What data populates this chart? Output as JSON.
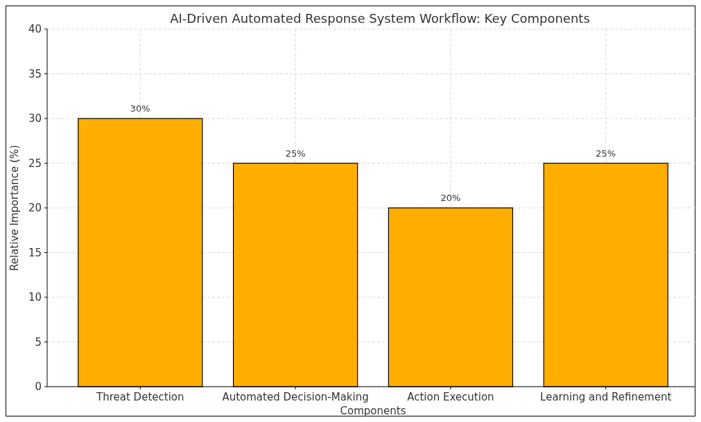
{
  "chart_data": {
    "type": "bar",
    "title": "AI-Driven Automated Response System Workflow: Key Components",
    "xlabel": "Components",
    "ylabel": "Relative Importance (%)",
    "categories": [
      "Threat Detection",
      "Automated Decision-Making",
      "Action Execution",
      "Learning and Refinement"
    ],
    "values": [
      30,
      25,
      20,
      25
    ],
    "color": "#ffae00",
    "value_labels": [
      "30%",
      "25%",
      "20%",
      "25%"
    ],
    "ylim": [
      0,
      40
    ],
    "yticks": [
      0,
      5,
      10,
      15,
      20,
      25,
      30,
      35,
      40
    ],
    "grid": true
  }
}
